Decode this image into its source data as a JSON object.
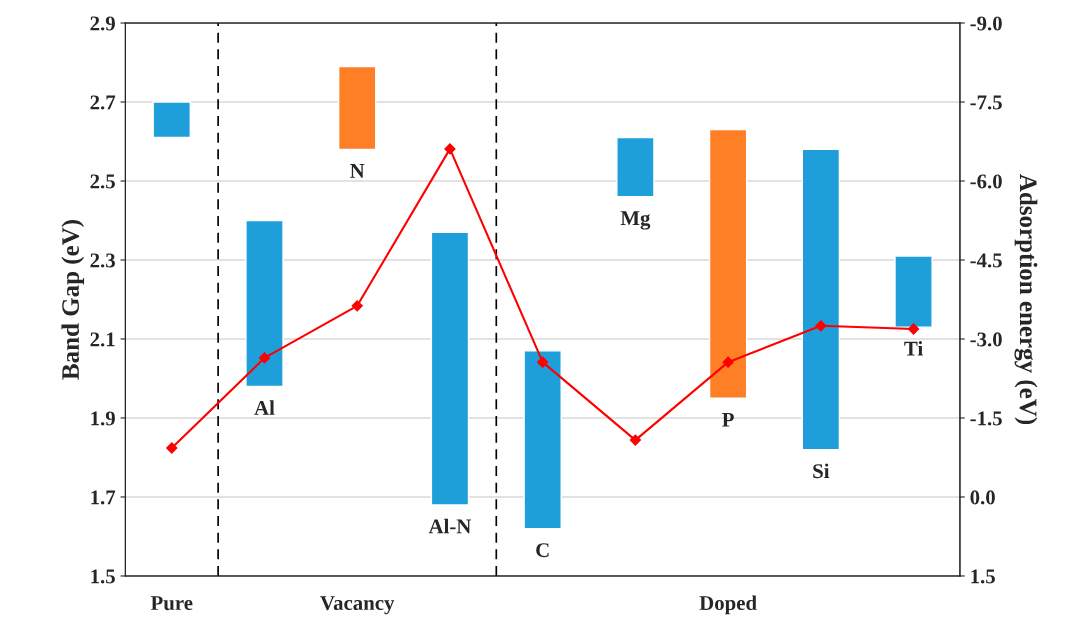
{
  "chart_data": {
    "type": "bar",
    "ylabel": "Band Gap (eV)",
    "y2label": "Adsorption energy (eV)",
    "categories": [
      null,
      "Al",
      "N",
      "Al-N",
      "C",
      "Mg",
      "P",
      "Si",
      "Ti"
    ],
    "series": [
      {
        "type": "bar",
        "colors": [
          "#1e9fda",
          "#1e9fda",
          "#ff7f27",
          "#1e9fda",
          "#1e9fda",
          "#1e9fda",
          "#ff7f27",
          "#1e9fda",
          "#1e9fda"
        ],
        "base": [
          2.61,
          1.98,
          2.58,
          1.68,
          1.62,
          2.46,
          1.95,
          1.82,
          2.13
        ],
        "values": [
          0.09,
          0.42,
          0.21,
          0.69,
          0.45,
          0.15,
          0.68,
          0.76,
          0.18
        ]
      },
      {
        "type": "line",
        "axis": "y2",
        "color": "#ff0000",
        "marker": "diamond",
        "values": [
          -0.93,
          -2.64,
          -3.63,
          -6.61,
          -2.56,
          -1.08,
          -2.56,
          -3.25,
          -3.19
        ]
      }
    ],
    "ylim": [
      1.5,
      2.9
    ],
    "yticks": [
      {
        "value": 1.5,
        "label": "1.5"
      },
      {
        "value": 1.7,
        "label": "1.7"
      },
      {
        "value": 1.9,
        "label": "1.9"
      },
      {
        "value": 2.1,
        "label": "2.1"
      },
      {
        "value": 2.3,
        "label": "2.3"
      },
      {
        "value": 2.5,
        "label": "2.5"
      },
      {
        "value": 2.7,
        "label": "2.7"
      },
      {
        "value": 2.9,
        "label": "2.9"
      }
    ],
    "y2lim": [
      1.5,
      -9.0
    ],
    "y2ticks": [
      {
        "value": 1.5,
        "label": "1.5"
      },
      {
        "value": 0.0,
        "label": "0.0"
      },
      {
        "value": -1.5,
        "label": "-1.5"
      },
      {
        "value": -3.0,
        "label": "-3.0"
      },
      {
        "value": -4.5,
        "label": "-4.5"
      },
      {
        "value": -6.0,
        "label": "-6.0"
      },
      {
        "value": -7.5,
        "label": "-7.5"
      },
      {
        "value": -9.0,
        "label": "-9.0"
      }
    ],
    "annotations": [
      "Pure",
      "Vacancy",
      "Doped"
    ],
    "grid": "y",
    "legend": false
  }
}
